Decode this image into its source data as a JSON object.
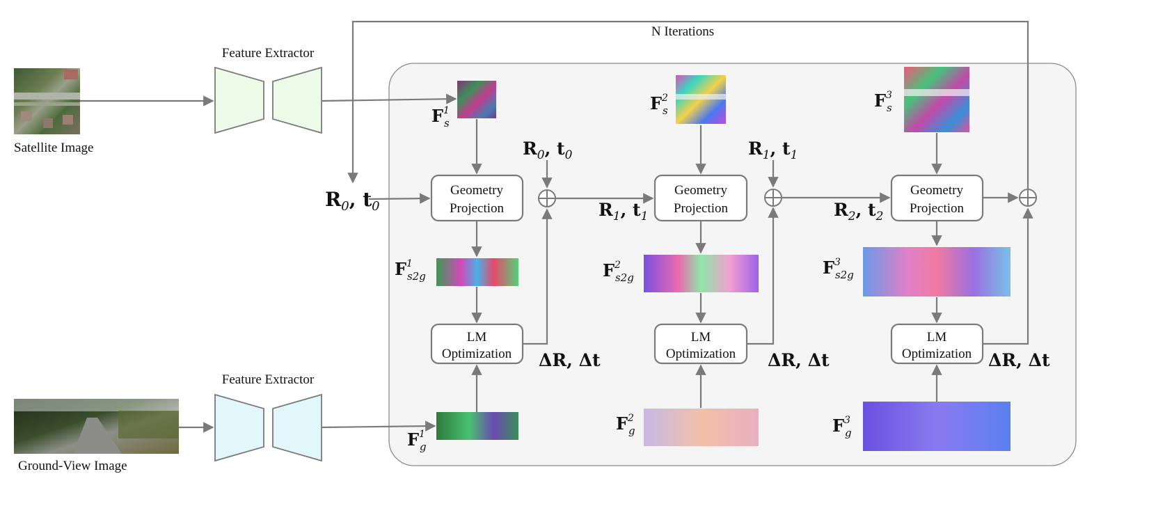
{
  "top_loop_label": "N Iterations",
  "satellite": {
    "caption": "Satellite Image"
  },
  "ground": {
    "caption": "Ground-View Image"
  },
  "extractor_top": {
    "title": "Feature Extractor"
  },
  "extractor_bottom": {
    "title": "Feature Extractor"
  },
  "initial_pose": {
    "main": "R",
    "sub": "0",
    "sep": ", ",
    "main2": "t",
    "sub2": "0"
  },
  "stages": [
    {
      "sat_feature": {
        "main": "F",
        "sup": "1",
        "sub": "s"
      },
      "proj_box": {
        "line1": "Geometry",
        "line2": "Projection"
      },
      "s2g_feature": {
        "main": "F",
        "sup": "1",
        "sub": "s2g"
      },
      "lm_box": {
        "line1": "LM",
        "line2": "Optimization"
      },
      "ground_feature": {
        "main": "F",
        "sup": "1",
        "sub": "g"
      },
      "delta": "ΔR, Δt",
      "pose_in": {
        "main": "R",
        "sub": "0",
        "main2": "t",
        "sub2": "0"
      },
      "pose_out": {
        "main": "R",
        "sub": "1",
        "main2": "t",
        "sub2": "1"
      }
    },
    {
      "sat_feature": {
        "main": "F",
        "sup": "2",
        "sub": "s"
      },
      "proj_box": {
        "line1": "Geometry",
        "line2": "Projection"
      },
      "s2g_feature": {
        "main": "F",
        "sup": "2",
        "sub": "s2g"
      },
      "lm_box": {
        "line1": "LM",
        "line2": "Optimization"
      },
      "ground_feature": {
        "main": "F",
        "sup": "2",
        "sub": "g"
      },
      "delta": "ΔR, Δt",
      "pose_in": {
        "main": "R",
        "sub": "1",
        "main2": "t",
        "sub2": "1"
      },
      "pose_out": {
        "main": "R",
        "sub": "2",
        "main2": "t",
        "sub2": "2"
      }
    },
    {
      "sat_feature": {
        "main": "F",
        "sup": "3",
        "sub": "s"
      },
      "proj_box": {
        "line1": "Geometry",
        "line2": "Projection"
      },
      "s2g_feature": {
        "main": "F",
        "sup": "3",
        "sub": "s2g"
      },
      "lm_box": {
        "line1": "LM",
        "line2": "Optimization"
      },
      "ground_feature": {
        "main": "F",
        "sup": "3",
        "sub": "g"
      },
      "delta": "ΔR, Δt"
    }
  ],
  "colors": {
    "line": "#7a7a7a",
    "panel_bg": "#f5f5f5",
    "extractor_top_fill": "#eefbe9",
    "extractor_bottom_fill": "#e2f7fb"
  },
  "icons": {
    "sum": "circle-plus-icon"
  }
}
